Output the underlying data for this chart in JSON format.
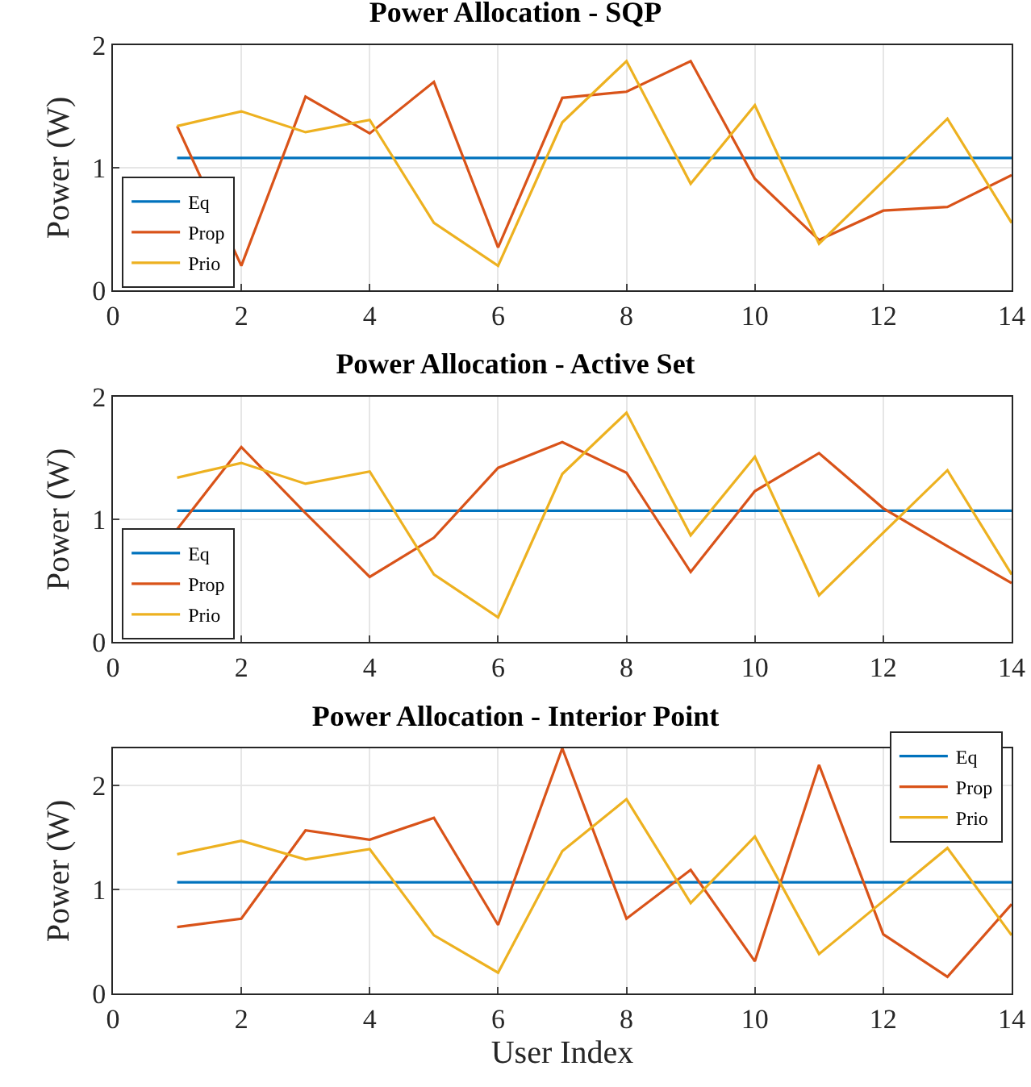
{
  "chart_data": [
    {
      "type": "line",
      "title": "Power Allocation - SQP",
      "ylabel": "Power (W)",
      "x": [
        1,
        2,
        3,
        4,
        5,
        6,
        7,
        8,
        9,
        10,
        11,
        12,
        13,
        14
      ],
      "series": [
        {
          "name": "Eq",
          "color": "#0072bd",
          "values": [
            1.08,
            1.08,
            1.08,
            1.08,
            1.08,
            1.08,
            1.08,
            1.08,
            1.08,
            1.08,
            1.08,
            1.08,
            1.08,
            1.08
          ]
        },
        {
          "name": "Prop",
          "color": "#d95319",
          "values": [
            1.34,
            0.2,
            1.58,
            1.28,
            1.7,
            0.35,
            1.57,
            1.62,
            1.87,
            0.91,
            0.41,
            0.65,
            0.68,
            0.94
          ]
        },
        {
          "name": "Prio",
          "color": "#edb120",
          "values": [
            1.34,
            1.46,
            1.29,
            1.39,
            0.55,
            0.2,
            1.37,
            1.87,
            0.87,
            1.51,
            0.38,
            0.89,
            1.4,
            0.55
          ]
        }
      ],
      "xlim": [
        0,
        14
      ],
      "xticks": [
        0,
        2,
        4,
        6,
        8,
        10,
        12,
        14
      ],
      "ylim": [
        0,
        2
      ],
      "yticks": [
        0,
        1,
        2
      ],
      "grid": true,
      "legend": "bottom left"
    },
    {
      "type": "line",
      "title": "Power Allocation - Active Set",
      "ylabel": "Power (W)",
      "x": [
        1,
        2,
        3,
        4,
        5,
        6,
        7,
        8,
        9,
        10,
        11,
        12,
        13,
        14
      ],
      "series": [
        {
          "name": "Eq",
          "color": "#0072bd",
          "values": [
            1.07,
            1.07,
            1.07,
            1.07,
            1.07,
            1.07,
            1.07,
            1.07,
            1.07,
            1.07,
            1.07,
            1.07,
            1.07,
            1.07
          ]
        },
        {
          "name": "Prop",
          "color": "#d95319",
          "values": [
            0.92,
            1.59,
            1.05,
            0.53,
            0.85,
            1.42,
            1.63,
            1.38,
            0.57,
            1.23,
            1.54,
            1.09,
            0.78,
            0.48
          ]
        },
        {
          "name": "Prio",
          "color": "#edb120",
          "values": [
            1.34,
            1.46,
            1.29,
            1.39,
            0.55,
            0.2,
            1.37,
            1.87,
            0.87,
            1.51,
            0.38,
            0.89,
            1.4,
            0.55
          ]
        }
      ],
      "xlim": [
        0,
        14
      ],
      "xticks": [
        0,
        2,
        4,
        6,
        8,
        10,
        12,
        14
      ],
      "ylim": [
        0,
        2
      ],
      "yticks": [
        0,
        1,
        2
      ],
      "grid": true,
      "legend": "bottom left"
    },
    {
      "type": "line",
      "title": "Power Allocation - Interior Point",
      "xlabel": "User Index",
      "ylabel": "Power (W)",
      "x": [
        1,
        2,
        3,
        4,
        5,
        6,
        7,
        8,
        9,
        10,
        11,
        12,
        13,
        14
      ],
      "series": [
        {
          "name": "Eq",
          "color": "#0072bd",
          "values": [
            1.07,
            1.07,
            1.07,
            1.07,
            1.07,
            1.07,
            1.07,
            1.07,
            1.07,
            1.07,
            1.07,
            1.07,
            1.07,
            1.07
          ]
        },
        {
          "name": "Prop",
          "color": "#d95319",
          "values": [
            0.64,
            0.72,
            1.57,
            1.48,
            1.69,
            0.66,
            2.36,
            0.72,
            1.19,
            0.31,
            2.2,
            0.57,
            0.16,
            0.86
          ]
        },
        {
          "name": "Prio",
          "color": "#edb120",
          "values": [
            1.34,
            1.47,
            1.29,
            1.39,
            0.56,
            0.2,
            1.37,
            1.87,
            0.87,
            1.51,
            0.38,
            0.89,
            1.4,
            0.56
          ]
        }
      ],
      "xlim": [
        0,
        14
      ],
      "xticks": [
        0,
        2,
        4,
        6,
        8,
        10,
        12,
        14
      ],
      "ylim": [
        0,
        2.36
      ],
      "yticks": [
        0,
        1,
        2
      ],
      "grid": true,
      "legend": "top right"
    }
  ]
}
